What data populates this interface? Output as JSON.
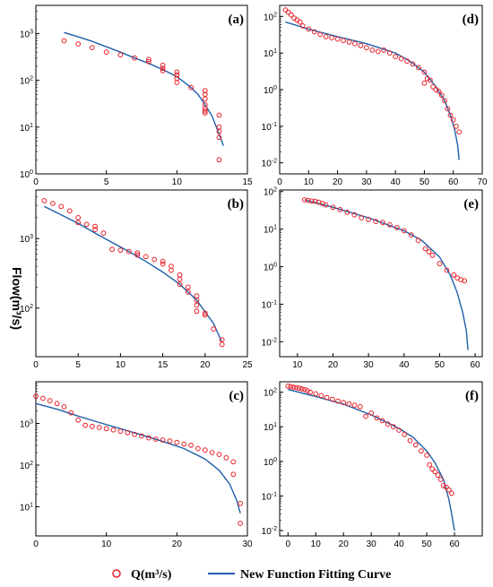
{
  "figure": {
    "ylabel": "Flow(m³/s)",
    "legend": [
      {
        "label": "Q(m³/s)",
        "marker": "circle",
        "color": "#e8202a"
      },
      {
        "label": "New Function Fitting Curve",
        "marker": "line",
        "color": "#1f5fa8"
      }
    ],
    "colors": {
      "points": "#e8202a",
      "curve": "#1f5fa8"
    }
  },
  "chart_data": [
    {
      "id": "a",
      "label": "(a)",
      "type": "scatter",
      "yscale": "log",
      "xlim": [
        0,
        15
      ],
      "ylim": [
        1,
        4000
      ],
      "xticks": [
        0,
        5,
        10,
        15
      ],
      "yticks": [
        1,
        10,
        100,
        1000
      ],
      "series": [
        {
          "kind": "points",
          "x": [
            2,
            3,
            4,
            5,
            6,
            7,
            8,
            8,
            9,
            9,
            9,
            10,
            10,
            10,
            10,
            11,
            12,
            12,
            12,
            12,
            12,
            12,
            12,
            13,
            13,
            13,
            13,
            13
          ],
          "y": [
            700,
            600,
            500,
            400,
            350,
            300,
            280,
            250,
            210,
            180,
            160,
            150,
            130,
            110,
            90,
            70,
            60,
            50,
            40,
            30,
            25,
            22,
            20,
            18,
            10,
            8,
            6,
            2
          ]
        },
        {
          "kind": "curve",
          "x": [
            2,
            3,
            4,
            5,
            6,
            7,
            8,
            9,
            10,
            11,
            11.5,
            12,
            12.5,
            13,
            13.3
          ],
          "y": [
            1050,
            850,
            680,
            520,
            400,
            300,
            230,
            170,
            120,
            70,
            50,
            30,
            17,
            7,
            4
          ]
        }
      ]
    },
    {
      "id": "b",
      "label": "(b)",
      "type": "scatter",
      "yscale": "log",
      "xlim": [
        0,
        25
      ],
      "ylim": [
        20,
        5000
      ],
      "xticks": [
        0,
        5,
        10,
        15,
        20,
        25
      ],
      "yticks": [
        100,
        1000
      ],
      "series": [
        {
          "kind": "points",
          "x": [
            1,
            2,
            3,
            4,
            5,
            5,
            6,
            7,
            7,
            8,
            9,
            10,
            11,
            12,
            12,
            13,
            14,
            15,
            15,
            16,
            16,
            17,
            17,
            17,
            18,
            18,
            19,
            19,
            19,
            19,
            20,
            20,
            21,
            22,
            22
          ],
          "y": [
            3500,
            3200,
            2900,
            2500,
            2000,
            1700,
            1600,
            1500,
            1350,
            1200,
            700,
            680,
            650,
            620,
            580,
            550,
            500,
            470,
            430,
            400,
            350,
            300,
            260,
            220,
            200,
            170,
            150,
            130,
            110,
            90,
            85,
            80,
            50,
            35,
            30
          ]
        },
        {
          "kind": "curve",
          "x": [
            1,
            3,
            5,
            7,
            9,
            11,
            13,
            15,
            17,
            19,
            21,
            22
          ],
          "y": [
            2900,
            2200,
            1650,
            1200,
            880,
            650,
            470,
            330,
            220,
            130,
            60,
            32
          ]
        }
      ]
    },
    {
      "id": "c",
      "label": "(c)",
      "type": "scatter",
      "yscale": "log",
      "xlim": [
        0,
        30
      ],
      "ylim": [
        2,
        10000
      ],
      "xticks": [
        0,
        10,
        20,
        30
      ],
      "yticks": [
        10,
        100,
        1000
      ],
      "series": [
        {
          "kind": "points",
          "x": [
            0,
            1,
            2,
            3,
            4,
            5,
            6,
            7,
            8,
            9,
            10,
            11,
            12,
            13,
            14,
            15,
            16,
            17,
            18,
            19,
            20,
            21,
            22,
            23,
            24,
            25,
            26,
            27,
            28,
            28,
            29,
            29
          ],
          "y": [
            4500,
            4000,
            3500,
            3000,
            2500,
            1800,
            1200,
            900,
            850,
            800,
            750,
            700,
            650,
            600,
            550,
            500,
            450,
            420,
            400,
            380,
            350,
            320,
            300,
            250,
            230,
            200,
            180,
            150,
            120,
            60,
            12,
            4
          ]
        },
        {
          "kind": "curve",
          "x": [
            0,
            3,
            6,
            9,
            12,
            15,
            18,
            21,
            24,
            26,
            27.5,
            28.5,
            29
          ],
          "y": [
            3000,
            2200,
            1500,
            1050,
            750,
            530,
            370,
            250,
            140,
            75,
            35,
            14,
            7
          ]
        }
      ]
    },
    {
      "id": "d",
      "label": "(d)",
      "type": "scatter",
      "yscale": "log",
      "xlim": [
        0,
        70
      ],
      "ylim": [
        0.005,
        200
      ],
      "xticks": [
        0,
        10,
        20,
        30,
        40,
        50,
        60,
        70
      ],
      "yticks": [
        0.01,
        0.1,
        1,
        10,
        100
      ],
      "series": [
        {
          "kind": "points",
          "x": [
            2,
            3,
            4,
            5,
            6,
            7,
            8,
            10,
            12,
            14,
            16,
            18,
            20,
            22,
            24,
            26,
            28,
            30,
            32,
            34,
            36,
            38,
            40,
            42,
            44,
            46,
            48,
            50,
            50,
            51,
            52,
            53,
            54,
            55,
            56,
            57,
            58,
            59,
            60,
            61,
            62
          ],
          "y": [
            150,
            130,
            110,
            90,
            80,
            70,
            55,
            45,
            38,
            32,
            28,
            26,
            24,
            22,
            20,
            18,
            16,
            14,
            12,
            11,
            12,
            10,
            8,
            7,
            6,
            5,
            4,
            3,
            1.5,
            2,
            1.8,
            1.2,
            1,
            0.9,
            0.7,
            0.5,
            0.3,
            0.2,
            0.15,
            0.1,
            0.07
          ]
        },
        {
          "kind": "curve",
          "x": [
            2,
            10,
            20,
            30,
            40,
            45,
            50,
            54,
            57,
            59,
            60.5,
            61.5,
            62
          ],
          "y": [
            70,
            45,
            28,
            18,
            10,
            6,
            3,
            1.2,
            0.5,
            0.2,
            0.08,
            0.03,
            0.012
          ]
        }
      ]
    },
    {
      "id": "e",
      "label": "(e)",
      "type": "scatter",
      "yscale": "log",
      "xlim": [
        5,
        62
      ],
      "ylim": [
        0.004,
        110
      ],
      "xticks": [
        10,
        20,
        30,
        40,
        50,
        60
      ],
      "yticks": [
        0.01,
        0.1,
        1,
        10,
        100
      ],
      "series": [
        {
          "kind": "points",
          "x": [
            12,
            13,
            14,
            15,
            16,
            17,
            18,
            20,
            22,
            24,
            26,
            28,
            30,
            32,
            34,
            36,
            38,
            40,
            42,
            44,
            46,
            47,
            48,
            50,
            52,
            54,
            55,
            56,
            57
          ],
          "y": [
            60,
            58,
            56,
            55,
            52,
            48,
            44,
            38,
            33,
            28,
            24,
            20,
            18,
            16,
            15,
            13,
            11,
            9,
            7,
            5,
            3,
            2.5,
            2,
            1.2,
            0.8,
            0.6,
            0.5,
            0.45,
            0.42
          ]
        },
        {
          "kind": "curve",
          "x": [
            12,
            20,
            30,
            40,
            45,
            50,
            53,
            55,
            56.5,
            57.5,
            58
          ],
          "y": [
            60,
            38,
            20,
            9,
            5,
            1.8,
            0.6,
            0.2,
            0.06,
            0.02,
            0.006
          ]
        }
      ]
    },
    {
      "id": "f",
      "label": "(f)",
      "type": "scatter",
      "yscale": "log",
      "xlim": [
        -3,
        70
      ],
      "ylim": [
        0.007,
        200
      ],
      "xticks": [
        0,
        10,
        20,
        30,
        40,
        50,
        60
      ],
      "yticks": [
        0.01,
        0.1,
        1,
        10,
        100
      ],
      "series": [
        {
          "kind": "points",
          "x": [
            0,
            1,
            2,
            3,
            4,
            5,
            6,
            7,
            8,
            10,
            12,
            14,
            16,
            18,
            20,
            22,
            24,
            26,
            28,
            30,
            32,
            34,
            36,
            38,
            40,
            42,
            44,
            46,
            48,
            50,
            51,
            52,
            53,
            54,
            55,
            56,
            57,
            58,
            59
          ],
          "y": [
            150,
            145,
            140,
            135,
            130,
            125,
            120,
            110,
            100,
            90,
            80,
            70,
            62,
            55,
            50,
            46,
            42,
            38,
            20,
            25,
            18,
            15,
            12,
            10,
            8,
            6,
            4,
            3,
            2,
            1.5,
            0.8,
            0.6,
            0.5,
            0.4,
            0.3,
            0.2,
            0.18,
            0.15,
            0.12
          ]
        },
        {
          "kind": "curve",
          "x": [
            0,
            10,
            20,
            30,
            40,
            45,
            50,
            53,
            56,
            58,
            59,
            60
          ],
          "y": [
            120,
            75,
            45,
            22,
            9,
            5,
            2,
            0.9,
            0.3,
            0.08,
            0.03,
            0.01
          ]
        }
      ]
    }
  ]
}
